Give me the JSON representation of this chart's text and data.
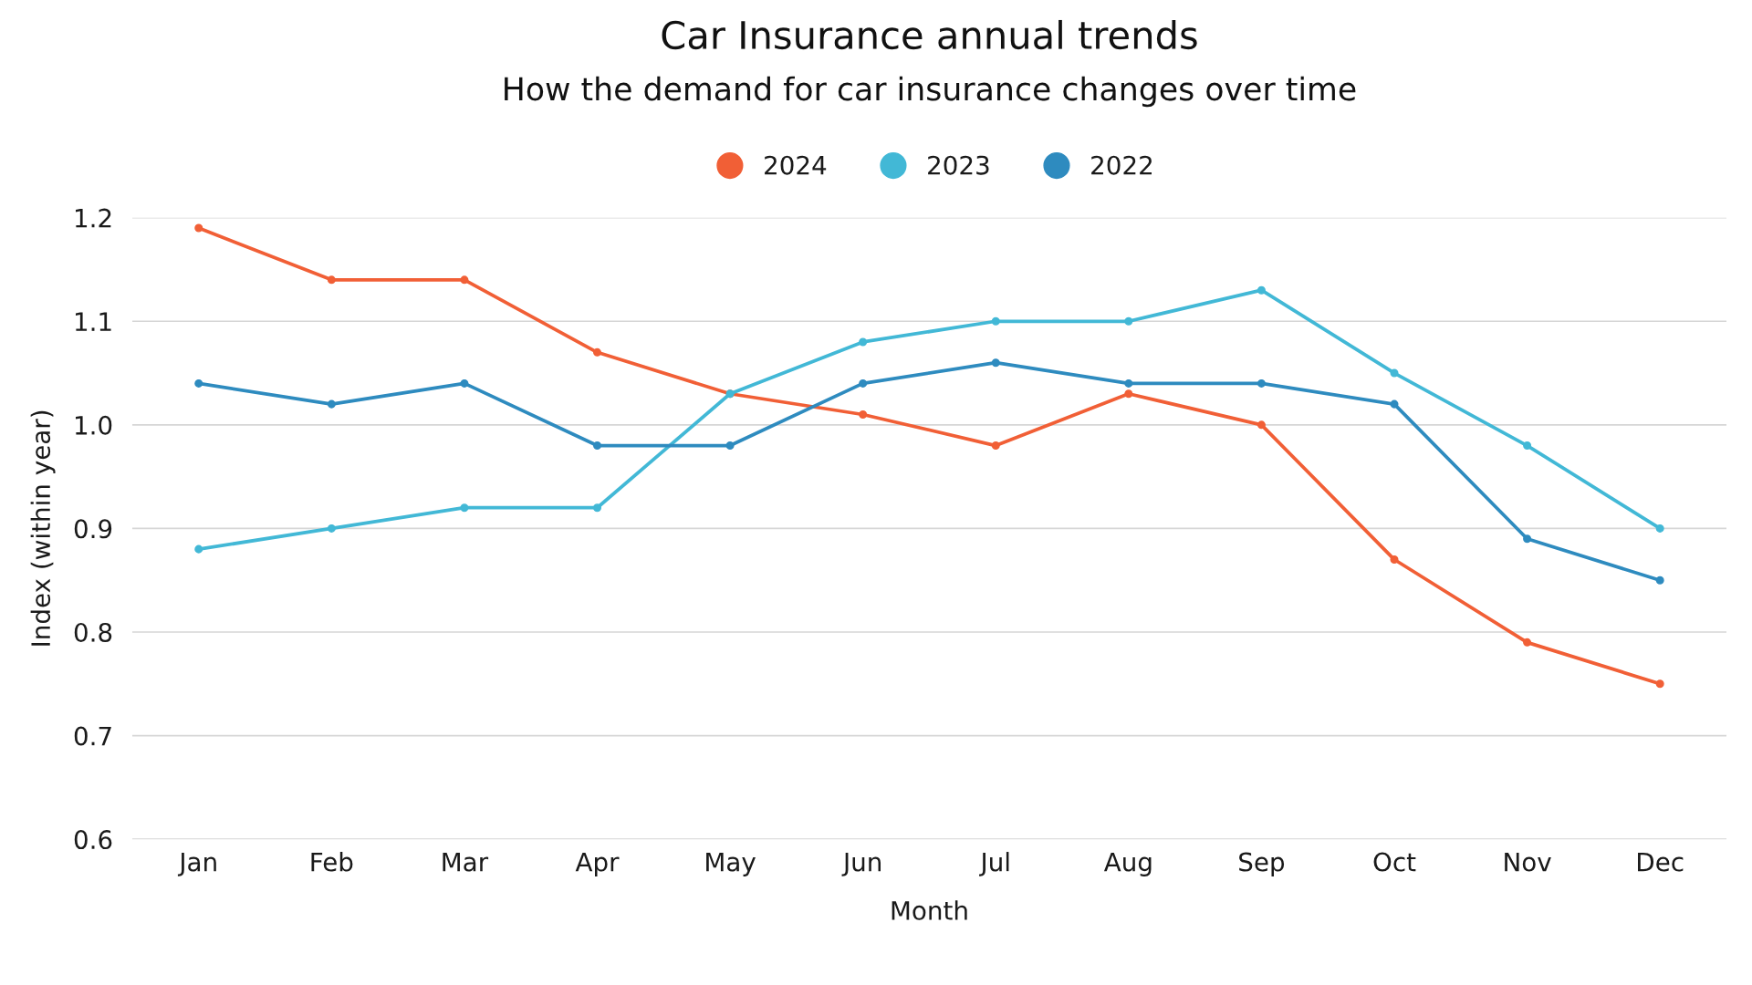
{
  "chart_data": {
    "type": "line",
    "title": "Car Insurance annual trends",
    "subtitle": "How the demand for car insurance changes over time",
    "xlabel": "Month",
    "ylabel": "Index (within year)",
    "categories": [
      "Jan",
      "Feb",
      "Mar",
      "Apr",
      "May",
      "Jun",
      "Jul",
      "Aug",
      "Sep",
      "Oct",
      "Nov",
      "Dec"
    ],
    "series": [
      {
        "name": "2024",
        "color": "#f15f36",
        "values": [
          1.19,
          1.14,
          1.14,
          1.07,
          1.03,
          1.01,
          0.98,
          1.03,
          1.0,
          0.87,
          0.79,
          0.75
        ]
      },
      {
        "name": "2023",
        "color": "#42b8d6",
        "values": [
          0.88,
          0.9,
          0.92,
          0.92,
          1.03,
          1.08,
          1.1,
          1.1,
          1.13,
          1.05,
          0.98,
          0.9
        ]
      },
      {
        "name": "2022",
        "color": "#2e8bbf",
        "values": [
          1.04,
          1.02,
          1.04,
          0.98,
          0.98,
          1.04,
          1.06,
          1.04,
          1.04,
          1.02,
          0.89,
          0.85
        ]
      }
    ],
    "ylim": [
      0.6,
      1.2
    ],
    "yticks": [
      0.6,
      0.7,
      0.8,
      0.9,
      {
        "value": 1.0,
        "label": "1.0"
      },
      1.1,
      1.2
    ],
    "grid": "y",
    "legend": "top",
    "marker": "circle",
    "line_style": "solid"
  }
}
